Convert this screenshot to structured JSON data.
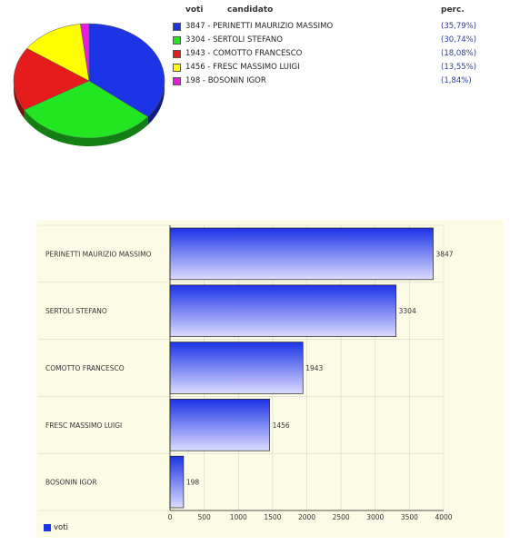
{
  "pie_legend": {
    "header_votes": "voti",
    "header_candidate": "candidato",
    "header_percent": "perc."
  },
  "bar_legend": {
    "label": "voti"
  },
  "chart_data": [
    {
      "type": "pie",
      "categories": [
        "PERINETTI MAURIZIO MASSIMO",
        "SERTOLI STEFANO",
        "COMOTTO FRANCESCO",
        "FRESC MASSIMO LUIGI",
        "BOSONIN IGOR"
      ],
      "values": [
        3847,
        3304,
        1943,
        1456,
        198
      ],
      "labels": [
        "3847 - PERINETTI MAURIZIO MASSIMO",
        "3304 - SERTOLI STEFANO",
        "1943 - COMOTTO FRANCESCO",
        "1456 - FRESC MASSIMO LUIGI",
        "198 -  BOSONIN IGOR"
      ],
      "percent_labels": [
        "(35,79%)",
        "(30,74%)",
        "(18,08%)",
        "(13,55%)",
        "(1,84%)"
      ],
      "colors": [
        "#1c33e6",
        "#22e622",
        "#e61c1c",
        "#ffff00",
        "#e61ce6"
      ],
      "legend": "right"
    },
    {
      "type": "bar",
      "orientation": "horizontal",
      "categories": [
        "PERINETTI MAURIZIO MASSIMO",
        "SERTOLI STEFANO",
        "COMOTTO FRANCESCO",
        "FRESC MASSIMO LUIGI",
        "BOSONIN IGOR"
      ],
      "series": [
        {
          "name": "voti",
          "values": [
            3847,
            3304,
            1943,
            1456,
            198
          ]
        }
      ],
      "value_labels": [
        "3847",
        "3304",
        "1943",
        "1456",
        "198"
      ],
      "xlim": [
        0,
        4000
      ],
      "x_ticks": [
        0,
        500,
        1000,
        1500,
        2000,
        2500,
        3000,
        3500,
        4000
      ],
      "x_tick_labels": [
        "0",
        "500",
        "1000",
        "1500",
        "2000",
        "2500",
        "3000",
        "3500",
        "4000"
      ],
      "grid": true,
      "legend": "bottom-left",
      "bar_color": "#1c33e6"
    }
  ]
}
